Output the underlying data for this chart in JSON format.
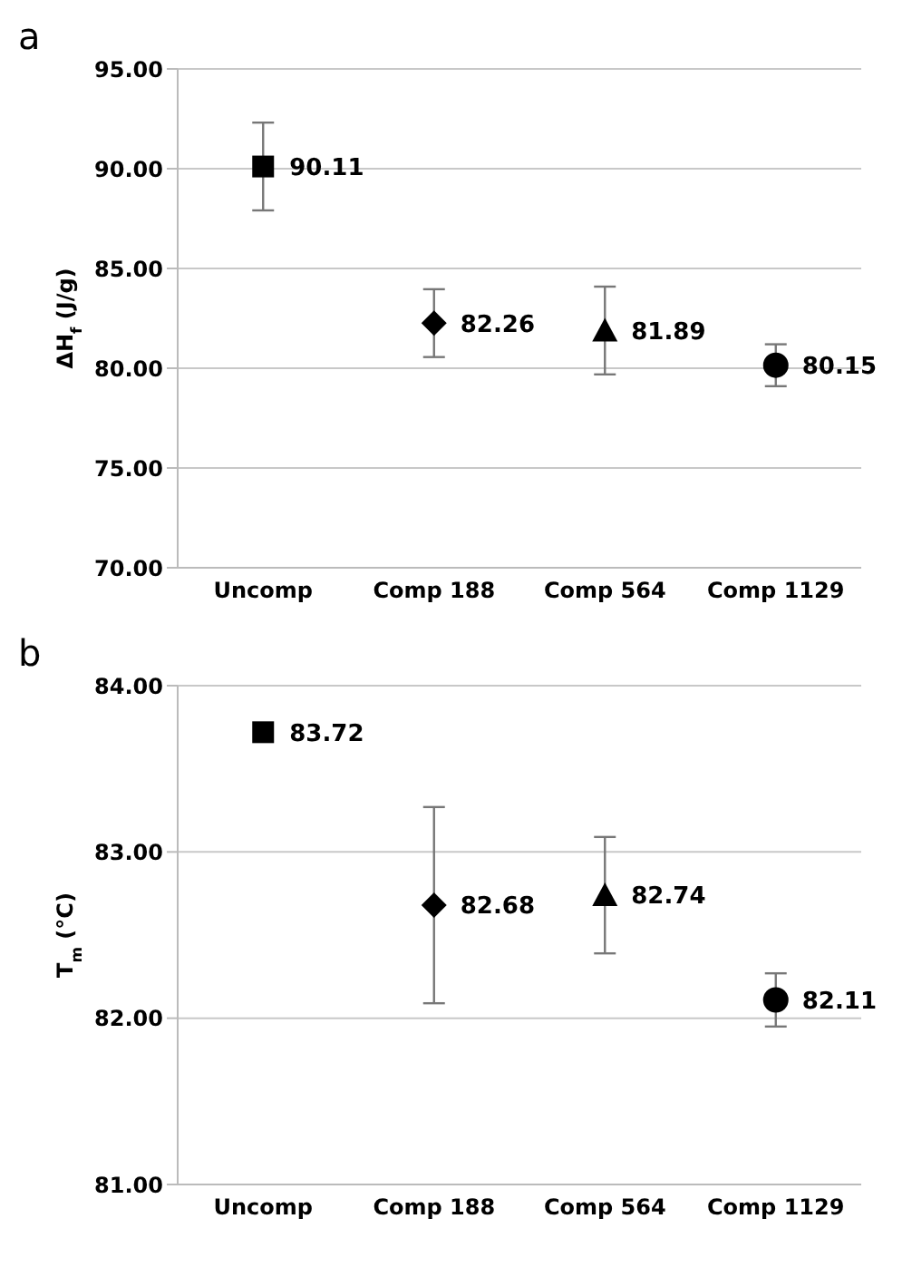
{
  "chart_data": [
    {
      "type": "scatter",
      "title": "a",
      "ylabel": "ΔH$_{f}$ (J/g)",
      "categories": [
        "Uncomp",
        "Comp 188",
        "Comp 564",
        "Comp 1129"
      ],
      "ylim": [
        70,
        95
      ],
      "yticks": [
        {
          "value": 70,
          "label": "70.00"
        },
        {
          "value": 75,
          "label": "75.00"
        },
        {
          "value": 80,
          "label": "80.00"
        },
        {
          "value": 85,
          "label": "85.00"
        },
        {
          "value": 90,
          "label": "90.00"
        },
        {
          "value": 95,
          "label": "95.00"
        }
      ],
      "grid": "y",
      "data_labels": true,
      "legend": false,
      "series": [
        {
          "x": [
            "Uncomp"
          ],
          "values": [
            90.11
          ],
          "errors": [
            2.2
          ],
          "marker": "square",
          "color": "#000000"
        },
        {
          "x": [
            "Comp 188"
          ],
          "values": [
            82.26
          ],
          "errors": [
            1.7
          ],
          "marker": "diamond",
          "color": "#000000"
        },
        {
          "x": [
            "Comp 564"
          ],
          "values": [
            81.89
          ],
          "errors": [
            2.2
          ],
          "marker": "triangle",
          "color": "#000000"
        },
        {
          "x": [
            "Comp 1129"
          ],
          "values": [
            80.15
          ],
          "errors": [
            1.05
          ],
          "marker": "circle",
          "color": "#000000"
        }
      ]
    },
    {
      "type": "scatter",
      "title": "b",
      "ylabel": "T$_{m}$ (°C)",
      "categories": [
        "Uncomp",
        "Comp 188",
        "Comp 564",
        "Comp 1129"
      ],
      "ylim": [
        81,
        84
      ],
      "yticks": [
        {
          "value": 81,
          "label": "81.00"
        },
        {
          "value": 82,
          "label": "82.00"
        },
        {
          "value": 83,
          "label": "83.00"
        },
        {
          "value": 84,
          "label": "84.00"
        }
      ],
      "grid": "y",
      "data_labels": true,
      "legend": false,
      "series": [
        {
          "x": [
            "Uncomp"
          ],
          "values": [
            83.72
          ],
          "marker": "square",
          "color": "#000000"
        },
        {
          "x": [
            "Comp 188"
          ],
          "values": [
            82.68
          ],
          "errors": [
            0.59
          ],
          "marker": "diamond",
          "color": "#000000"
        },
        {
          "x": [
            "Comp 564"
          ],
          "values": [
            82.74
          ],
          "errors": [
            0.35
          ],
          "marker": "triangle",
          "color": "#000000"
        },
        {
          "x": [
            "Comp 1129"
          ],
          "values": [
            82.11
          ],
          "errors": [
            0.16
          ],
          "marker": "circle",
          "color": "#000000"
        }
      ]
    }
  ]
}
